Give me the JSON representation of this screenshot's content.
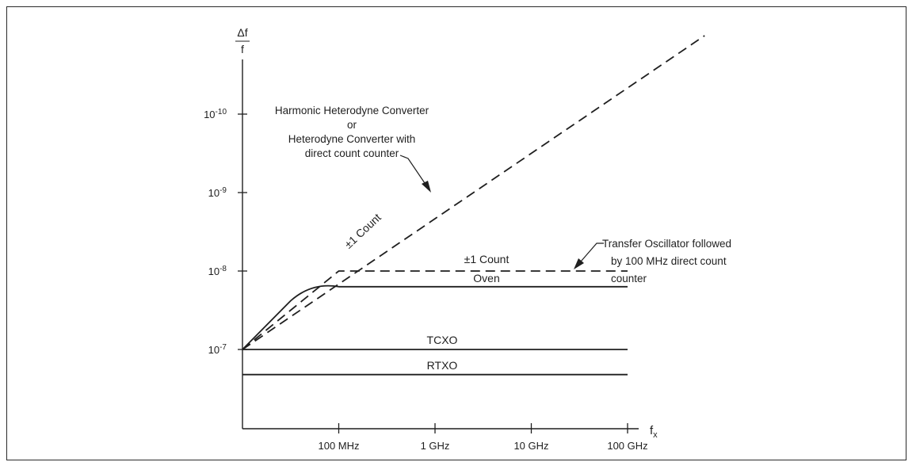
{
  "chart_data": {
    "type": "line",
    "y_axis_label": {
      "numerator": "Δf",
      "denominator": "f"
    },
    "x_axis_label": {
      "base": "f",
      "subscript": "x"
    },
    "x_ticks": [
      "100 MHz",
      "1 GHz",
      "10 GHz",
      "100 GHz"
    ],
    "y_ticks": [
      {
        "label": "10-7",
        "base": "10",
        "exp": "-7",
        "decade": 0
      },
      {
        "label": "10-8",
        "base": "10",
        "exp": "-8",
        "decade": 1
      },
      {
        "label": "10-9",
        "base": "10",
        "exp": "-9",
        "decade": 2
      },
      {
        "label": "10-10",
        "base": "10",
        "exp": "-10",
        "decade": 3
      }
    ],
    "series": [
      {
        "name": "Harmonic Heterodyne Converter or Heterodyne Converter with direct count counter",
        "style": "dashed",
        "x": [
          0,
          4.8
        ],
        "y": [
          0,
          4.0
        ]
      },
      {
        "name": "±1 Count",
        "style": "dashed",
        "x": [
          0,
          1,
          4
        ],
        "y": [
          0,
          1,
          1
        ]
      },
      {
        "name": "Oven",
        "style": "solid",
        "x": [
          0,
          0.5,
          1,
          4
        ],
        "y": [
          0,
          0.62,
          0.8,
          0.8
        ]
      },
      {
        "name": "TCXO",
        "style": "solid",
        "x": [
          0,
          4
        ],
        "y": [
          0,
          0
        ]
      },
      {
        "name": "RTXO",
        "style": "solid",
        "x": [
          0,
          4
        ],
        "y": [
          -0.32,
          -0.32
        ]
      }
    ],
    "curve_labels": {
      "count_diag": "±1 Count",
      "count_flat": "±1 Count",
      "oven": "Oven",
      "tcxo": "TCXO",
      "rtxo": "RTXO"
    },
    "annotations": {
      "heterodyne": [
        "Harmonic Heterodyne Converter",
        "or",
        "Heterodyne Converter with",
        "direct count counter"
      ],
      "transfer": [
        "Transfer Oscillator followed",
        "by 100 MHz direct count",
        "counter"
      ]
    }
  }
}
